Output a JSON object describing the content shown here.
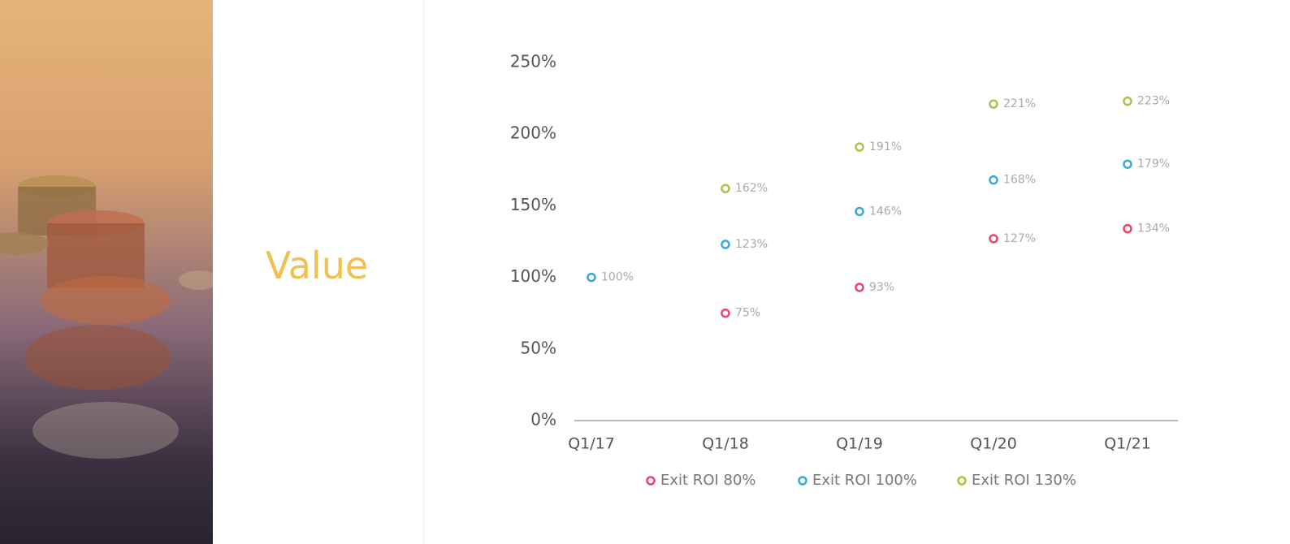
{
  "slide": {
    "title": "Value"
  },
  "chart_data": {
    "type": "scatter",
    "categories": [
      "Q1/17",
      "Q1/18",
      "Q1/19",
      "Q1/20",
      "Q1/21"
    ],
    "series": [
      {
        "name": "Exit ROI 80%",
        "color": "#e8456a",
        "values": [
          null,
          75,
          93,
          127,
          134
        ],
        "value_labels": [
          null,
          "75%",
          "93%",
          "127%",
          "134%"
        ]
      },
      {
        "name": "Exit ROI 100%",
        "color": "#3aa8d8",
        "values": [
          100,
          123,
          146,
          168,
          179
        ],
        "value_labels": [
          "100%",
          "123%",
          "146%",
          "168%",
          "179%"
        ]
      },
      {
        "name": "Exit ROI 130%",
        "color": "#a8c44a",
        "values": [
          null,
          162,
          191,
          221,
          223
        ],
        "value_labels": [
          null,
          "162%",
          "191%",
          "221%",
          "223%"
        ]
      }
    ],
    "ylim": [
      0,
      250
    ],
    "yticks": [
      {
        "value": 0,
        "label": "0%"
      },
      {
        "value": 50,
        "label": "50%"
      },
      {
        "value": 100,
        "label": "100%"
      },
      {
        "value": 150,
        "label": "150%"
      },
      {
        "value": 200,
        "label": "200%"
      },
      {
        "value": 250,
        "label": "250%"
      }
    ],
    "grid": false,
    "legend": "bottom"
  }
}
